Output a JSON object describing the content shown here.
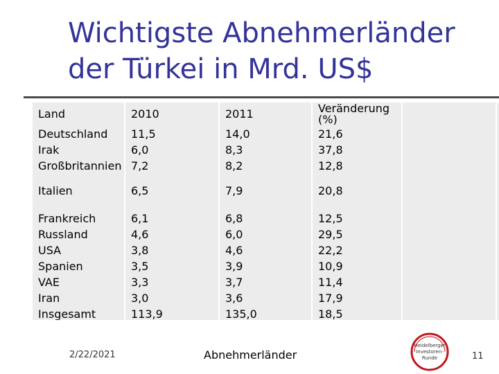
{
  "slide": {
    "title_line1": "Wichtigste Abnehmerländer",
    "title_line2": "der Türkei in Mrd. US$",
    "date": "2/22/2021",
    "footer": "Abnehmerländer",
    "page_number": "11"
  },
  "logo": {
    "line1": "Heidelberger",
    "line2": "Investoren-",
    "line3": "Runde"
  },
  "table": {
    "headers": [
      "Land",
      "2010",
      "2011",
      "Veränderung (%)"
    ],
    "rows": [
      {
        "land": "Deutschland",
        "y2010": "11,5",
        "y2011": "14,0",
        "change": "21,6"
      },
      {
        "land": "Irak",
        "y2010": "6,0",
        "y2011": "8,3",
        "change": "37,8"
      },
      {
        "land": "Großbritannien",
        "y2010": "7,2",
        "y2011": "8,2",
        "change": "12,8"
      },
      {
        "land": "Italien",
        "y2010": "6,5",
        "y2011": "7,9",
        "change": "20,8"
      },
      {
        "land": "Frankreich",
        "y2010": "6,1",
        "y2011": "6,8",
        "change": "12,5"
      },
      {
        "land": "Russland",
        "y2010": "4,6",
        "y2011": "6,0",
        "change": "29,5"
      },
      {
        "land": "USA",
        "y2010": "3,8",
        "y2011": "4,6",
        "change": "22,2"
      },
      {
        "land": "Spanien",
        "y2010": "3,5",
        "y2011": "3,9",
        "change": "10,9"
      },
      {
        "land": "VAE",
        "y2010": "3,3",
        "y2011": "3,7",
        "change": "11,4"
      },
      {
        "land": "Iran",
        "y2010": "3,0",
        "y2011": "3,6",
        "change": "17,9"
      },
      {
        "land": "Insgesamt",
        "y2010": "113,9",
        "y2011": "135,0",
        "change": "18,5"
      }
    ]
  },
  "colors": {
    "title": "#333399",
    "cell_bg": "#ececec",
    "logo_red": "#c0171c"
  }
}
